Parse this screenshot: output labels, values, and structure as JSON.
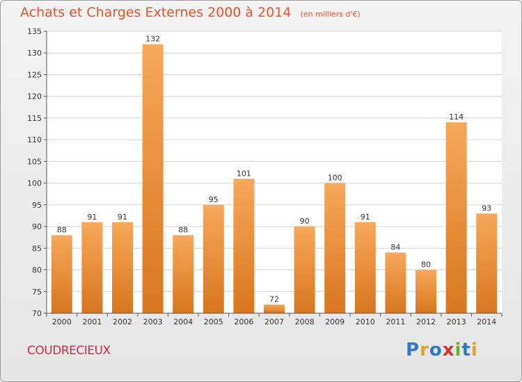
{
  "header": {
    "title": "Achats et Charges Externes 2000 à 2014",
    "subtitle": "(en milliers d'€)"
  },
  "footer": {
    "commune": "COUDRECIEUX",
    "brand": "Proxiti",
    "brand_letters": [
      {
        "char": "P",
        "color": "#2f77c8"
      },
      {
        "char": "r",
        "color": "#e8a11e"
      },
      {
        "char": "o",
        "color": "#2f77c8"
      },
      {
        "char": "x",
        "color": "#d8322d"
      },
      {
        "char": "i",
        "color": "#6bb12b"
      },
      {
        "char": "t",
        "color": "#2f77c8"
      },
      {
        "char": "i",
        "color": "#e8a11e"
      }
    ]
  },
  "chart_data": {
    "type": "bar",
    "categories": [
      "2000",
      "2001",
      "2002",
      "2003",
      "2004",
      "2005",
      "2006",
      "2007",
      "2008",
      "2009",
      "2010",
      "2011",
      "2012",
      "2013",
      "2014"
    ],
    "values": [
      88,
      91,
      91,
      132,
      88,
      95,
      101,
      72,
      90,
      100,
      91,
      84,
      80,
      114,
      93
    ],
    "value_labels": [
      "88",
      "91",
      "91",
      "132",
      "88",
      "95",
      "101",
      "72",
      "90",
      "100",
      "91",
      "84",
      "80",
      "114",
      "93"
    ],
    "title": "Achats et Charges Externes 2000 à 2014",
    "subtitle": "(en milliers d'€)",
    "xlabel": "",
    "ylabel": "",
    "ylim": [
      70,
      135
    ],
    "yticks": [
      70,
      75,
      80,
      85,
      90,
      95,
      100,
      105,
      110,
      115,
      120,
      125,
      130,
      135
    ],
    "grid": true,
    "bar_color_top": "#f7a85a",
    "bar_color_bottom": "#d8761f"
  }
}
